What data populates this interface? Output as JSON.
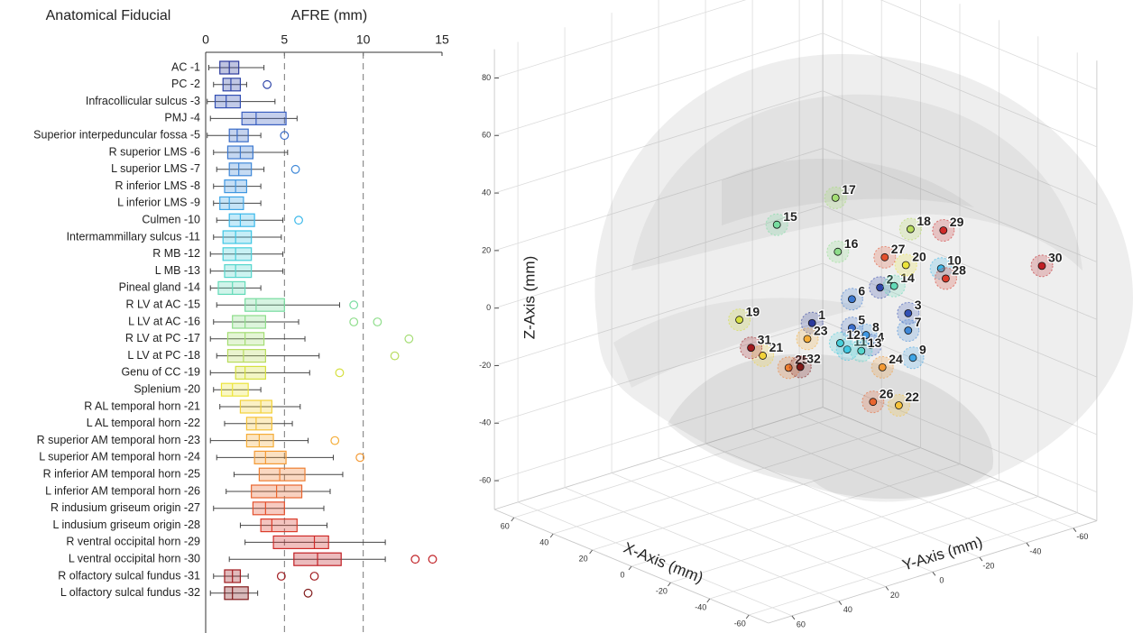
{
  "chart_data": [
    {
      "type": "boxplot",
      "y_label": "Anatomical Fiducial",
      "x_label": "AFRE (mm)",
      "categories": [
        "AC -1",
        "PC -2",
        "Infracollicular sulcus -3",
        "PMJ -4",
        "Superior interpeduncular fossa -5",
        "R superior LMS -6",
        "L superior LMS -7",
        "R inferior LMS -8",
        "L inferior LMS -9",
        "Culmen -10",
        "Intermammillary sulcus -11",
        "R MB -12",
        "L MB -13",
        "Pineal gland -14",
        "R LV at AC -15",
        "L LV at AC -16",
        "R LV at PC -17",
        "L LV at PC -18",
        "Genu of CC -19",
        "Splenium -20",
        "R AL temporal horn -21",
        "L AL temporal horn -22",
        "R superior AM temporal horn -23",
        "L superior AM temporal horn -24",
        "R inferior AM temporal horn -25",
        "L inferior AM temporal horn -26",
        "R indusium griseum origin -27",
        "L indusium griseum origin -28",
        "R ventral occipital horn -29",
        "L ventral occipital horn -30",
        "R olfactory sulcal fundus -31",
        "L olfactory sulcal fundus -32"
      ],
      "colors": [
        "#2b3a9c",
        "#2f45a8",
        "#3350b4",
        "#3a5fc0",
        "#3a6cc8",
        "#3d79d0",
        "#3f88d8",
        "#3f96e0",
        "#3ea5e6",
        "#3ab8ea",
        "#3ec6e4",
        "#48cfda",
        "#54d6cc",
        "#63dab8",
        "#78dca0",
        "#8edd8a",
        "#a4dd74",
        "#b8dc5e",
        "#d6e040",
        "#ece43a",
        "#f2d23a",
        "#f5c23a",
        "#f5ad38",
        "#f39a35",
        "#ee7f32",
        "#e96630",
        "#e3502d",
        "#db3c2b",
        "#cf2b29",
        "#c01f24",
        "#a01a1e",
        "#801819"
      ],
      "min": [
        0.2,
        0.5,
        0.1,
        0.3,
        0.1,
        0.5,
        0.7,
        0.5,
        0.5,
        0.7,
        0.5,
        0.3,
        0.3,
        0.3,
        0.7,
        0.5,
        0.3,
        0.7,
        0.3,
        0.5,
        0.9,
        1.2,
        0.3,
        0.7,
        1.8,
        1.3,
        0.5,
        2.2,
        2.5,
        1.5,
        0.5,
        0.3
      ],
      "q1": [
        0.9,
        1.1,
        0.6,
        2.3,
        1.5,
        1.4,
        1.5,
        1.2,
        0.9,
        1.5,
        1.1,
        1.1,
        1.2,
        0.8,
        2.5,
        1.7,
        1.4,
        1.4,
        1.9,
        1.0,
        2.2,
        2.6,
        2.6,
        3.1,
        3.4,
        2.9,
        3.0,
        3.5,
        4.3,
        5.6,
        1.2,
        1.2
      ],
      "median": [
        1.5,
        1.6,
        1.3,
        3.2,
        2.0,
        2.2,
        2.1,
        1.9,
        1.5,
        2.2,
        1.9,
        1.9,
        1.9,
        1.7,
        3.2,
        2.5,
        2.5,
        2.4,
        2.5,
        1.7,
        3.5,
        3.2,
        3.4,
        3.8,
        4.7,
        4.5,
        3.8,
        4.2,
        6.9,
        7.1,
        1.7,
        1.7
      ],
      "q3": [
        2.1,
        2.2,
        2.2,
        5.1,
        2.7,
        3.0,
        2.9,
        2.6,
        2.4,
        3.1,
        2.9,
        2.9,
        2.9,
        2.5,
        5.0,
        3.8,
        3.7,
        3.8,
        3.8,
        2.7,
        4.2,
        4.2,
        4.3,
        5.1,
        6.3,
        6.1,
        5.0,
        5.8,
        7.8,
        8.6,
        2.2,
        2.7
      ],
      "max": [
        3.7,
        2.6,
        4.4,
        5.8,
        3.5,
        5.2,
        3.7,
        3.5,
        3.5,
        4.9,
        4.8,
        4.9,
        4.9,
        3.5,
        8.5,
        5.9,
        6.3,
        7.2,
        6.6,
        3.5,
        6.0,
        5.5,
        6.5,
        8.1,
        8.7,
        7.9,
        7.5,
        7.7,
        11.4,
        11.4,
        2.7,
        3.3
      ],
      "outliers": [
        [],
        [
          3.9
        ],
        [],
        [],
        [
          5
        ],
        [],
        [
          5.7
        ],
        [],
        [],
        [
          5.9
        ],
        [],
        [],
        [],
        [],
        [
          9.4
        ],
        [
          9.4,
          10.9
        ],
        [
          12.9
        ],
        [
          12.0
        ],
        [
          8.5
        ],
        [],
        [],
        [],
        [
          8.2
        ],
        [
          9.8
        ],
        [],
        [],
        [],
        [],
        [],
        [
          13.3,
          14.4
        ],
        [
          4.8,
          6.9
        ],
        [
          6.5
        ]
      ],
      "xlim": [
        0,
        15
      ],
      "xticks": [
        0,
        5,
        10,
        15
      ],
      "vlines": [
        5,
        10
      ]
    },
    {
      "type": "scatter3d",
      "x_label": "X-Axis (mm)",
      "y_label": "Y-Axis (mm)",
      "z_label": "Z-Axis (mm)",
      "labels": [
        "1",
        "2",
        "3",
        "4",
        "5",
        "6",
        "7",
        "8",
        "9",
        "10",
        "11",
        "12",
        "13",
        "14",
        "15",
        "16",
        "17",
        "18",
        "19",
        "20",
        "21",
        "22",
        "23",
        "24",
        "25",
        "26",
        "27",
        "28",
        "29",
        "30",
        "31",
        "32"
      ],
      "x": [
        0,
        0,
        0,
        0,
        0,
        0,
        0,
        0,
        0,
        0,
        0,
        0,
        0,
        0,
        0,
        0,
        0,
        0,
        0,
        0,
        0,
        0,
        0,
        0,
        0,
        0,
        0,
        0,
        0,
        0,
        0,
        0
      ],
      "y": [
        -7,
        -36,
        -48,
        -32,
        -24,
        -24,
        -48,
        -30,
        -50,
        -62,
        -22,
        -19,
        -28,
        -42,
        8,
        -18,
        -17,
        -49,
        24,
        -47,
        14,
        -44,
        -5,
        -37,
        3,
        -33,
        -38,
        -64,
        -63,
        -105,
        19,
        -2
      ],
      "z": [
        -5,
        0,
        -12,
        -19,
        -11,
        -1,
        -18,
        -15,
        -28,
        0,
        -18,
        -15,
        -20,
        -1,
        33,
        17,
        36,
        17,
        4,
        5,
        -11,
        -43,
        -10,
        -28,
        -18,
        -39,
        10,
        -4,
        13,
        -10,
        -7,
        -19
      ],
      "xlim": [
        -70,
        70
      ],
      "ylim": [
        -70,
        70
      ],
      "zlim": [
        -70,
        90
      ],
      "xticks": [
        -60,
        -40,
        -20,
        0,
        20,
        40,
        60
      ],
      "yticks": [
        -60,
        -40,
        -20,
        0,
        20,
        40,
        60
      ],
      "zticks": [
        -60,
        -40,
        -20,
        0,
        20,
        40,
        60,
        80
      ]
    }
  ]
}
